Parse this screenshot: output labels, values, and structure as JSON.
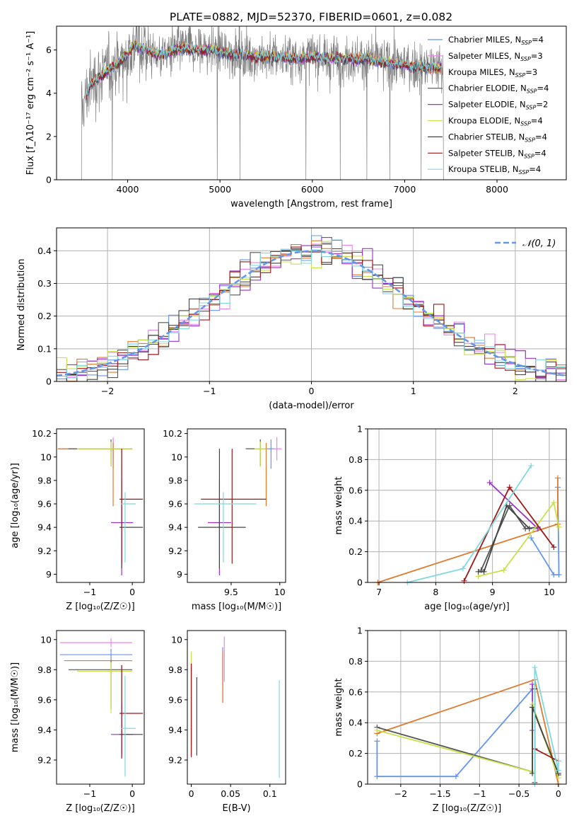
{
  "figure_title": "PLATE=0882, MJD=52370, FIBERID=0601, z=0.082",
  "colors": {
    "grid": "#b0b0b0",
    "data": "#808080",
    "Chabrier MILES": "#6495ed",
    "Salpeter MILES": "#ee82ee",
    "Kroupa MILES": "#e07a2e",
    "Chabrier ELODIE": "#555555",
    "Salpeter ELODIE": "#9932cc",
    "Kroupa ELODIE": "#c8e04a",
    "Chabrier STELIB": "#444444",
    "Salpeter STELIB": "#a01818",
    "Kroupa STELIB": "#7fd8e0"
  },
  "chart_data": [
    {
      "id": "spectrum",
      "type": "line",
      "title": "PLATE=0882, MJD=52370, FIBERID=0601, z=0.082",
      "xlabel": "wavelength [Angstrom, rest frame]",
      "ylabel": "Flux [f_λ10⁻¹⁷ erg cm⁻² s⁻¹ A⁻¹]",
      "xlim": [
        3230,
        8750
      ],
      "ylim": [
        0,
        7.1
      ],
      "xticks": [
        4000,
        5000,
        6000,
        7000,
        8000
      ],
      "yticks": [
        0,
        2,
        4,
        6
      ],
      "legend": [
        {
          "label": "Chabrier MILES, N",
          "sub": "SSP",
          "tail": "=4",
          "key": "Chabrier MILES"
        },
        {
          "label": "Salpeter MILES, N",
          "sub": "SSP",
          "tail": "=3",
          "key": "Salpeter MILES"
        },
        {
          "label": "Kroupa MILES, N",
          "sub": "SSP",
          "tail": "=3",
          "key": "Kroupa MILES"
        },
        {
          "label": "Chabrier ELODIE, N",
          "sub": "SSP",
          "tail": "=4",
          "key": "Chabrier ELODIE"
        },
        {
          "label": "Salpeter ELODIE, N",
          "sub": "SSP",
          "tail": "=2",
          "key": "Salpeter ELODIE"
        },
        {
          "label": "Kroupa ELODIE, N",
          "sub": "SSP",
          "tail": "=4",
          "key": "Kroupa ELODIE"
        },
        {
          "label": "Chabrier STELIB, N",
          "sub": "SSP",
          "tail": "=4",
          "key": "Chabrier STELIB"
        },
        {
          "label": "Salpeter STELIB, N",
          "sub": "SSP",
          "tail": "=4",
          "key": "Salpeter STELIB"
        },
        {
          "label": "Kroupa STELIB, N",
          "sub": "SSP",
          "tail": "=4",
          "key": "Kroupa STELIB"
        }
      ],
      "legend_position": "upper right",
      "continuum": {
        "x": [
          3500,
          3550,
          3600,
          3700,
          3800,
          3900,
          4000,
          4050,
          4100,
          4200,
          4300,
          4400,
          4500,
          4600,
          4700,
          4800,
          4900,
          5000,
          5200,
          5400,
          5600,
          5800,
          6000,
          6200,
          6400,
          6600,
          6800,
          7000,
          7200,
          7400
        ],
        "y": [
          3.1,
          3.9,
          4.4,
          4.8,
          5.1,
          5.4,
          5.8,
          6.2,
          6.2,
          6.0,
          5.8,
          5.8,
          6.0,
          6.1,
          6.0,
          6.0,
          6.0,
          5.9,
          5.8,
          5.7,
          5.7,
          5.6,
          5.7,
          5.6,
          5.6,
          5.6,
          5.4,
          5.3,
          5.2,
          5.2
        ]
      },
      "data_range": [
        3500,
        7420
      ],
      "models_range": [
        3550,
        7400
      ]
    },
    {
      "id": "residuals",
      "type": "area",
      "xlabel": "(data-model)/error",
      "ylabel": "Normed distribution",
      "xlim": [
        -2.5,
        2.5
      ],
      "ylim": [
        0,
        0.47
      ],
      "xticks": [
        -2,
        -1,
        0,
        1,
        2
      ],
      "yticks": [
        0.0,
        0.1,
        0.2,
        0.3,
        0.4
      ],
      "legend": [
        {
          "label": "𝒩(0, 1)",
          "key": "Chabrier MILES"
        }
      ],
      "legend_position": "upper right",
      "reference_curve": "standard normal N(0,1)",
      "bin_width": 0.1,
      "histograms": [
        "Chabrier MILES",
        "Salpeter MILES",
        "Kroupa MILES",
        "Chabrier ELODIE",
        "Salpeter ELODIE",
        "Kroupa ELODIE",
        "Chabrier STELIB",
        "Salpeter STELIB",
        "Kroupa STELIB"
      ]
    },
    {
      "id": "age_vs_z",
      "type": "scatter",
      "xlabel": "Z [log₁₀(Z/Z☉)]",
      "ylabel": "age  [log₁₀(age/yr)]",
      "xlim": [
        -1.78,
        0.28
      ],
      "ylim": [
        8.93,
        10.24
      ],
      "xticks": [
        -1,
        0
      ],
      "yticks": [
        9.0,
        9.2,
        9.4,
        9.6,
        9.8,
        10.0,
        10.2
      ],
      "errorbars": [
        {
          "model": "Chabrier MILES",
          "x": -0.45,
          "y": 10.07,
          "xerr": [
            1.3,
            0.45
          ],
          "yerr": [
            0.17,
            0.08
          ]
        },
        {
          "model": "Salpeter MILES",
          "x": -0.45,
          "y": 10.07,
          "xerr": [
            1.3,
            0.42
          ],
          "yerr": [
            0.1,
            0.1
          ]
        },
        {
          "model": "Kroupa MILES",
          "x": -0.45,
          "y": 10.07,
          "xerr": [
            1.3,
            0.42
          ],
          "yerr": [
            0.49,
            0.05
          ]
        },
        {
          "model": "Chabrier ELODIE",
          "x": -0.5,
          "y": 10.07,
          "xerr": [
            1.0,
            0.5
          ],
          "yerr": [
            0.15,
            0.08
          ]
        },
        {
          "model": "Salpeter ELODIE",
          "x": -0.25,
          "y": 9.44,
          "xerr": [
            0.25,
            0.27
          ],
          "yerr": [
            0.45,
            0.36
          ]
        },
        {
          "model": "Kroupa ELODIE",
          "x": -0.5,
          "y": 10.07,
          "xerr": [
            0.8,
            0.5
          ],
          "yerr": [
            0.15,
            0.06
          ]
        },
        {
          "model": "Chabrier STELIB",
          "x": -0.25,
          "y": 9.4,
          "xerr": [
            0.05,
            0.5
          ],
          "yerr": [
            0.35,
            0.67
          ]
        },
        {
          "model": "Salpeter STELIB",
          "x": -0.25,
          "y": 9.64,
          "xerr": [
            0.05,
            0.5
          ],
          "yerr": [
            0.55,
            0.43
          ]
        },
        {
          "model": "Kroupa STELIB",
          "x": -0.17,
          "y": 9.6,
          "xerr": [
            0.1,
            0.25
          ],
          "yerr": [
            0.5,
            0.1
          ]
        }
      ]
    },
    {
      "id": "age_vs_mass",
      "type": "scatter",
      "xlabel": "mass [log₁₀(M/M☉)]",
      "ylabel": "",
      "xlim": [
        9.05,
        10.06
      ],
      "ylim": [
        8.93,
        10.24
      ],
      "xticks": [
        9.5,
        10.0
      ],
      "yticks": [
        9.0,
        9.2,
        9.4,
        9.6,
        9.8,
        10.0,
        10.2
      ],
      "errorbars": [
        {
          "model": "Chabrier MILES",
          "x": 9.91,
          "y": 10.07,
          "xerr": [
            0.04,
            0.04
          ],
          "yerr": [
            0.17,
            0.08
          ]
        },
        {
          "model": "Salpeter MILES",
          "x": 9.97,
          "y": 10.07,
          "xerr": [
            0.04,
            0.05
          ],
          "yerr": [
            0.1,
            0.1
          ]
        },
        {
          "model": "Kroupa MILES",
          "x": 9.86,
          "y": 10.07,
          "xerr": [
            0.01,
            0.01
          ],
          "yerr": [
            0.49,
            0.05
          ]
        },
        {
          "model": "Chabrier ELODIE",
          "x": 9.8,
          "y": 10.07,
          "xerr": [
            0.15,
            0.06
          ],
          "yerr": [
            0.15,
            0.08
          ]
        },
        {
          "model": "Salpeter ELODIE",
          "x": 9.38,
          "y": 9.44,
          "xerr": [
            0.12,
            0.12
          ],
          "yerr": [
            0.45,
            0.36
          ]
        },
        {
          "model": "Kroupa ELODIE",
          "x": 9.8,
          "y": 10.07,
          "xerr": [
            0.06,
            0.06
          ],
          "yerr": [
            0.15,
            0.06
          ]
        },
        {
          "model": "Chabrier STELIB",
          "x": 9.38,
          "y": 9.4,
          "xerr": [
            0.22,
            0.27
          ],
          "yerr": [
            0.35,
            0.67
          ]
        },
        {
          "model": "Salpeter STELIB",
          "x": 9.51,
          "y": 9.64,
          "xerr": [
            0.32,
            0.35
          ],
          "yerr": [
            0.55,
            0.43
          ]
        },
        {
          "model": "Kroupa STELIB",
          "x": 9.42,
          "y": 9.6,
          "xerr": [
            0.3,
            0.34
          ],
          "yerr": [
            0.5,
            0.1
          ]
        }
      ]
    },
    {
      "id": "weight_vs_age",
      "type": "line",
      "xlabel": "age  [log₁₀(age/yr)]",
      "ylabel": "mass weight",
      "xlim": [
        6.8,
        10.3
      ],
      "ylim": [
        0.0,
        1.0
      ],
      "xticks": [
        7,
        8,
        9,
        10
      ],
      "yticks": [
        0.0,
        0.2,
        0.4,
        0.6,
        0.8,
        1.0
      ],
      "series": [
        {
          "model": "Chabrier MILES",
          "x": [
            9.68,
            10.08,
            10.17,
            10.15
          ],
          "y": [
            0.29,
            0.05,
            0.05,
            0.62
          ]
        },
        {
          "model": "Kroupa MILES",
          "x": [
            6.98,
            10.15,
            10.15
          ],
          "y": [
            0.0,
            0.38,
            0.68
          ]
        },
        {
          "model": "Chabrier ELODIE",
          "x": [
            8.8,
            9.3,
            9.58,
            9.8
          ],
          "y": [
            0.08,
            0.5,
            0.35,
            0.36
          ]
        },
        {
          "model": "Salpeter ELODIE",
          "x": [
            8.95,
            9.8
          ],
          "y": [
            0.65,
            0.35
          ]
        },
        {
          "model": "Kroupa ELODIE",
          "x": [
            8.75,
            9.2,
            10.08,
            10.17
          ],
          "y": [
            0.04,
            0.08,
            0.52,
            0.36
          ]
        },
        {
          "model": "Chabrier STELIB",
          "x": [
            8.75,
            8.85,
            9.25,
            9.65
          ],
          "y": [
            0.07,
            0.07,
            0.5,
            0.35
          ]
        },
        {
          "model": "Salpeter STELIB",
          "x": [
            8.5,
            9.3,
            10.08
          ],
          "y": [
            0.01,
            0.62,
            0.23
          ]
        },
        {
          "model": "Kroupa STELIB",
          "x": [
            7.5,
            8.48,
            9.68
          ],
          "y": [
            0.0,
            0.09,
            0.76
          ]
        }
      ]
    },
    {
      "id": "mass_vs_z",
      "type": "scatter",
      "xlabel": "Z [log₁₀(Z/Z☉)]",
      "ylabel": "mass [log₁₀(M/M☉)]",
      "xlim": [
        -1.78,
        0.28
      ],
      "ylim": [
        9.04,
        10.06
      ],
      "xticks": [
        -1,
        0
      ],
      "yticks": [
        9.2,
        9.4,
        9.6,
        9.8,
        10.0
      ],
      "errorbars": [
        {
          "model": "Chabrier MILES",
          "x": -0.5,
          "y": 9.9,
          "xerr": [
            1.2,
            0.5
          ],
          "yerr": [
            0.04,
            0.04
          ]
        },
        {
          "model": "Salpeter MILES",
          "x": -0.5,
          "y": 9.98,
          "xerr": [
            1.2,
            0.5
          ],
          "yerr": [
            0.03,
            0.03
          ]
        },
        {
          "model": "Kroupa MILES",
          "x": -0.5,
          "y": 9.86,
          "xerr": [
            1.1,
            0.5
          ],
          "yerr": [
            0.01,
            0.01
          ]
        },
        {
          "model": "Chabrier ELODIE",
          "x": -0.5,
          "y": 9.8,
          "xerr": [
            1.0,
            0.5
          ],
          "yerr": [
            0.26,
            0.06
          ]
        },
        {
          "model": "Salpeter ELODIE",
          "x": -0.25,
          "y": 9.37,
          "xerr": [
            0.25,
            0.27
          ],
          "yerr": [
            0.15,
            0.2
          ]
        },
        {
          "model": "Kroupa ELODIE",
          "x": -0.5,
          "y": 9.79,
          "xerr": [
            0.8,
            0.5
          ],
          "yerr": [
            0.28,
            0.06
          ]
        },
        {
          "model": "Chabrier STELIB",
          "x": -0.25,
          "y": 9.37,
          "xerr": [
            0.05,
            0.5
          ],
          "yerr": [
            0.13,
            0.46
          ]
        },
        {
          "model": "Salpeter STELIB",
          "x": -0.25,
          "y": 9.51,
          "xerr": [
            0.05,
            0.5
          ],
          "yerr": [
            0.3,
            0.32
          ]
        },
        {
          "model": "Kroupa STELIB",
          "x": -0.17,
          "y": 9.41,
          "xerr": [
            0.1,
            0.25
          ],
          "yerr": [
            0.32,
            0.35
          ]
        }
      ]
    },
    {
      "id": "mass_vs_ebv",
      "type": "scatter",
      "xlabel": "E(B-V)",
      "ylabel": "",
      "xlim": [
        -0.005,
        0.12
      ],
      "ylim": [
        9.04,
        10.06
      ],
      "xticks": [
        0.0,
        0.05,
        0.1
      ],
      "yticks": [
        9.2,
        9.4,
        9.6,
        9.8,
        10.0
      ],
      "errorbars": [
        {
          "model": "Chabrier MILES",
          "x": 0.04,
          "y": 9.78,
          "yerr": [
            0.2,
            0.17
          ]
        },
        {
          "model": "Salpeter MILES",
          "x": 0.042,
          "y": 9.86,
          "yerr": [
            0.14,
            0.16
          ]
        },
        {
          "model": "Kroupa MILES",
          "x": 0.04,
          "y": 9.7,
          "yerr": [
            0.12,
            0.22
          ]
        },
        {
          "model": "Chabrier ELODIE",
          "x": 0.0,
          "y": 9.5,
          "yerr": [
            0.2,
            0.34
          ]
        },
        {
          "model": "Salpeter ELODIE",
          "x": 0.0,
          "y": 9.5,
          "yerr": [
            0.28,
            0.34
          ]
        },
        {
          "model": "Kroupa ELODIE",
          "x": 0.0,
          "y": 9.7,
          "yerr": [
            0.2,
            0.22
          ]
        },
        {
          "model": "Chabrier STELIB",
          "x": 0.007,
          "y": 9.48,
          "yerr": [
            0.25,
            0.27
          ]
        },
        {
          "model": "Salpeter STELIB",
          "x": 0.0,
          "y": 9.5,
          "yerr": [
            0.28,
            0.34
          ]
        },
        {
          "model": "Kroupa STELIB",
          "x": 0.112,
          "y": 9.4,
          "yerr": [
            0.32,
            0.33
          ]
        }
      ]
    },
    {
      "id": "weight_vs_z",
      "type": "line",
      "xlabel": "Z [log₁₀(Z/Z☉)]",
      "ylabel": "mass weight",
      "xlim": [
        -2.42,
        0.1
      ],
      "ylim": [
        0.0,
        1.0
      ],
      "xticks": [
        -2.0,
        -1.5,
        -1.0,
        -0.5,
        0.0
      ],
      "yticks": [
        0.0,
        0.2,
        0.4,
        0.6,
        0.8,
        1.0
      ],
      "series": [
        {
          "model": "Chabrier MILES",
          "x": [
            -2.3,
            -2.3,
            -1.3,
            -0.33
          ],
          "y": [
            0.28,
            0.05,
            0.05,
            0.62
          ]
        },
        {
          "model": "Kroupa MILES",
          "x": [
            -2.3,
            -0.3,
            0.0
          ],
          "y": [
            0.33,
            0.68,
            0.0
          ]
        },
        {
          "model": "Chabrier ELODIE",
          "x": [
            -2.3,
            -0.33,
            -0.33,
            0.0
          ],
          "y": [
            0.37,
            0.08,
            0.5,
            0.06
          ]
        },
        {
          "model": "Salpeter ELODIE",
          "x": [
            -0.33,
            -0.33
          ],
          "y": [
            0.65,
            0.35
          ]
        },
        {
          "model": "Kroupa ELODIE",
          "x": [
            -2.3,
            -0.33,
            -0.33,
            0.0
          ],
          "y": [
            0.35,
            0.08,
            0.52,
            0.04
          ]
        },
        {
          "model": "Chabrier STELIB",
          "x": [
            -0.33,
            -0.33,
            0.0
          ],
          "y": [
            0.07,
            0.5,
            0.07
          ]
        },
        {
          "model": "Salpeter STELIB",
          "x": [
            -0.3,
            -0.3,
            -0.3,
            0.0
          ],
          "y": [
            0.01,
            0.62,
            0.23,
            0.15
          ]
        },
        {
          "model": "Kroupa STELIB",
          "x": [
            -0.3,
            -0.3,
            0.0,
            0.0
          ],
          "y": [
            0.0,
            0.76,
            0.09,
            0.15
          ]
        }
      ]
    }
  ]
}
